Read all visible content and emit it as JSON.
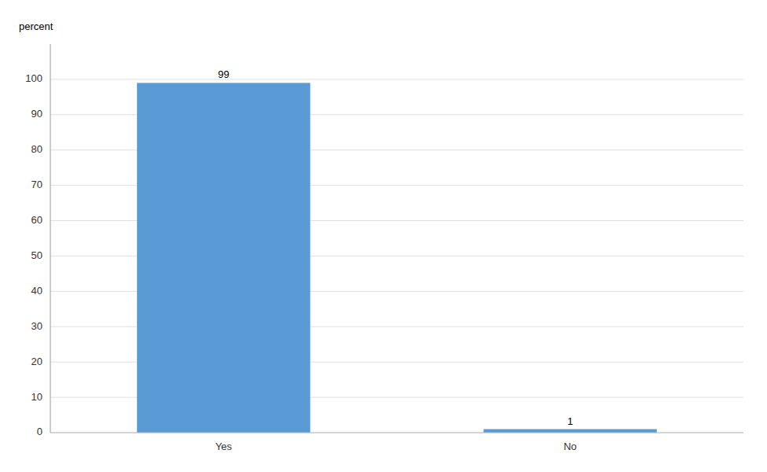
{
  "chart_data": {
    "type": "bar",
    "ylabel": "percent",
    "categories": [
      "Yes",
      "No"
    ],
    "values": [
      99,
      1
    ],
    "color": "#5B9BD5",
    "ylim": [
      0,
      110
    ],
    "yticks": [
      0,
      10,
      20,
      30,
      40,
      50,
      60,
      70,
      80,
      90,
      100
    ],
    "grid": true,
    "data_labels": true
  }
}
